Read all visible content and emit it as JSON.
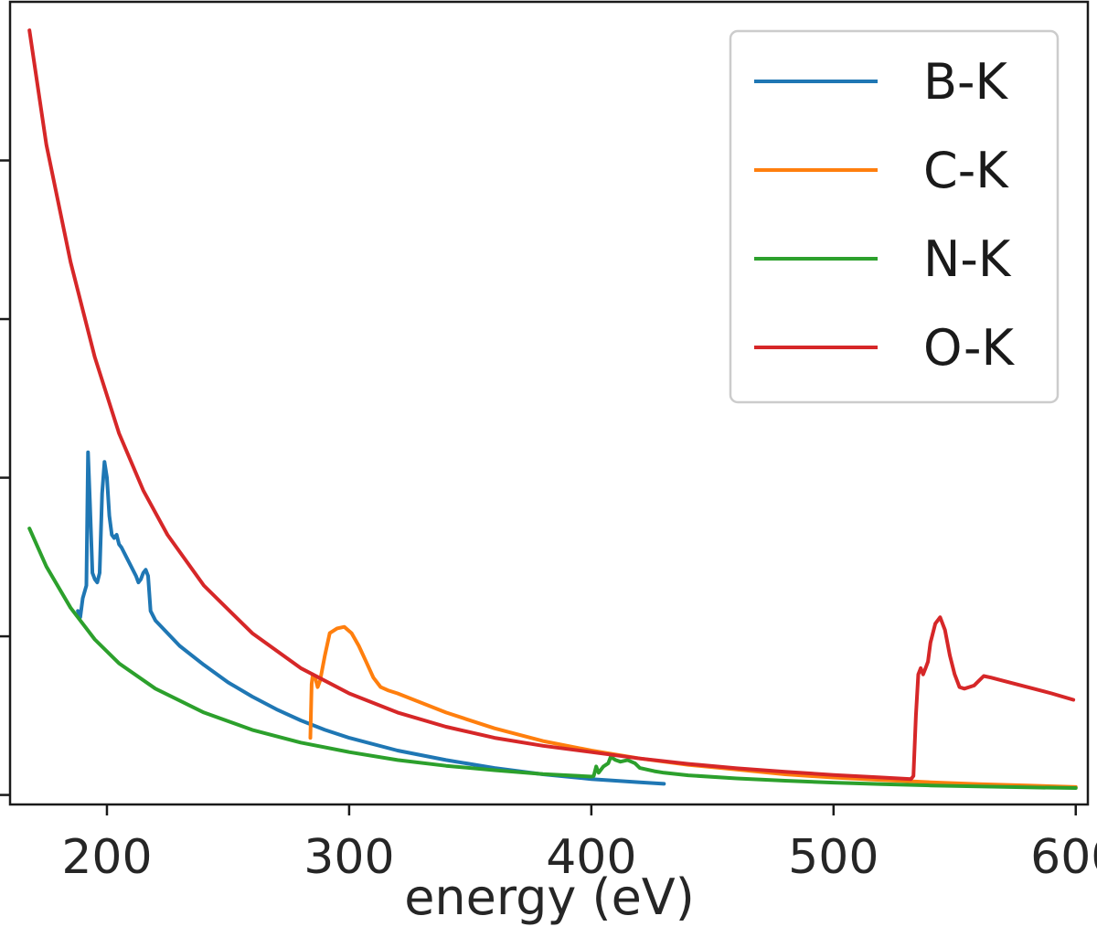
{
  "chart_data": {
    "type": "line",
    "xlabel": "energy (eV)",
    "ylabel": "",
    "xlim": [
      160,
      605
    ],
    "ylim": [
      -0.03,
      2.5
    ],
    "x_ticks": [
      200,
      300,
      400,
      500,
      600
    ],
    "x_tick_labels": [
      "200",
      "300",
      "400",
      "500",
      "600"
    ],
    "y_ticks": [
      0,
      0.5,
      1.0,
      1.5,
      2.0
    ],
    "y_tick_labels_visible": false,
    "grid": false,
    "legend": {
      "position": "top-right"
    },
    "series": [
      {
        "name": "B-K",
        "color": "#1f77b4",
        "points": [
          [
            188,
            0.58
          ],
          [
            189,
            0.56
          ],
          [
            190,
            0.62
          ],
          [
            191.5,
            0.66
          ],
          [
            192.2,
            1.08
          ],
          [
            193,
            0.92
          ],
          [
            194,
            0.7
          ],
          [
            195,
            0.68
          ],
          [
            196,
            0.67
          ],
          [
            197,
            0.7
          ],
          [
            198,
            0.95
          ],
          [
            199,
            1.05
          ],
          [
            200,
            1.0
          ],
          [
            201,
            0.88
          ],
          [
            202,
            0.82
          ],
          [
            203,
            0.81
          ],
          [
            204,
            0.82
          ],
          [
            205,
            0.79
          ],
          [
            206,
            0.78
          ],
          [
            208,
            0.75
          ],
          [
            210,
            0.72
          ],
          [
            212,
            0.69
          ],
          [
            213,
            0.67
          ],
          [
            214,
            0.68
          ],
          [
            215,
            0.7
          ],
          [
            216,
            0.71
          ],
          [
            217,
            0.69
          ],
          [
            218,
            0.58
          ],
          [
            220,
            0.55
          ],
          [
            230,
            0.47
          ],
          [
            240,
            0.41
          ],
          [
            250,
            0.355
          ],
          [
            260,
            0.31
          ],
          [
            270,
            0.27
          ],
          [
            280,
            0.235
          ],
          [
            290,
            0.205
          ],
          [
            300,
            0.18
          ],
          [
            320,
            0.14
          ],
          [
            340,
            0.11
          ],
          [
            360,
            0.085
          ],
          [
            380,
            0.065
          ],
          [
            400,
            0.05
          ],
          [
            420,
            0.04
          ],
          [
            430,
            0.035
          ]
        ]
      },
      {
        "name": "C-K",
        "color": "#ff7f0e",
        "points": [
          [
            284,
            0.18
          ],
          [
            284.5,
            0.35
          ],
          [
            285,
            0.38
          ],
          [
            286,
            0.37
          ],
          [
            287,
            0.34
          ],
          [
            288,
            0.36
          ],
          [
            290,
            0.44
          ],
          [
            292,
            0.51
          ],
          [
            295,
            0.525
          ],
          [
            298,
            0.53
          ],
          [
            301,
            0.51
          ],
          [
            304,
            0.47
          ],
          [
            307,
            0.42
          ],
          [
            310,
            0.37
          ],
          [
            313,
            0.34
          ],
          [
            316,
            0.33
          ],
          [
            320,
            0.32
          ],
          [
            340,
            0.26
          ],
          [
            360,
            0.21
          ],
          [
            380,
            0.17
          ],
          [
            400,
            0.14
          ],
          [
            420,
            0.115
          ],
          [
            440,
            0.095
          ],
          [
            460,
            0.08
          ],
          [
            480,
            0.065
          ],
          [
            500,
            0.055
          ],
          [
            520,
            0.047
          ],
          [
            540,
            0.04
          ],
          [
            560,
            0.034
          ],
          [
            580,
            0.03
          ],
          [
            600,
            0.025
          ]
        ]
      },
      {
        "name": "N-K",
        "color": "#2ca02c",
        "points": [
          [
            168,
            0.84
          ],
          [
            175,
            0.72
          ],
          [
            185,
            0.59
          ],
          [
            195,
            0.49
          ],
          [
            205,
            0.415
          ],
          [
            220,
            0.335
          ],
          [
            240,
            0.26
          ],
          [
            260,
            0.205
          ],
          [
            280,
            0.165
          ],
          [
            300,
            0.135
          ],
          [
            320,
            0.11
          ],
          [
            340,
            0.092
          ],
          [
            360,
            0.078
          ],
          [
            380,
            0.066
          ],
          [
            400,
            0.058
          ],
          [
            401,
            0.06
          ],
          [
            402,
            0.09
          ],
          [
            403,
            0.07
          ],
          [
            405,
            0.09
          ],
          [
            407,
            0.1
          ],
          [
            408,
            0.12
          ],
          [
            410,
            0.11
          ],
          [
            412,
            0.105
          ],
          [
            415,
            0.11
          ],
          [
            418,
            0.1
          ],
          [
            420,
            0.085
          ],
          [
            423,
            0.08
          ],
          [
            426,
            0.075
          ],
          [
            430,
            0.07
          ],
          [
            440,
            0.062
          ],
          [
            460,
            0.052
          ],
          [
            480,
            0.045
          ],
          [
            500,
            0.039
          ],
          [
            520,
            0.034
          ],
          [
            540,
            0.03
          ],
          [
            560,
            0.027
          ],
          [
            580,
            0.024
          ],
          [
            600,
            0.022
          ]
        ]
      },
      {
        "name": "O-K",
        "color": "#d62728",
        "points": [
          [
            168,
            2.41
          ],
          [
            175,
            2.05
          ],
          [
            185,
            1.68
          ],
          [
            195,
            1.38
          ],
          [
            205,
            1.14
          ],
          [
            215,
            0.96
          ],
          [
            225,
            0.82
          ],
          [
            240,
            0.66
          ],
          [
            260,
            0.51
          ],
          [
            280,
            0.4
          ],
          [
            300,
            0.32
          ],
          [
            320,
            0.26
          ],
          [
            340,
            0.215
          ],
          [
            360,
            0.18
          ],
          [
            380,
            0.155
          ],
          [
            400,
            0.135
          ],
          [
            420,
            0.115
          ],
          [
            440,
            0.098
          ],
          [
            460,
            0.084
          ],
          [
            480,
            0.073
          ],
          [
            500,
            0.063
          ],
          [
            520,
            0.055
          ],
          [
            532,
            0.05
          ],
          [
            533,
            0.06
          ],
          [
            534,
            0.25
          ],
          [
            535,
            0.38
          ],
          [
            536,
            0.4
          ],
          [
            537,
            0.38
          ],
          [
            538,
            0.4
          ],
          [
            539,
            0.42
          ],
          [
            540,
            0.48
          ],
          [
            542,
            0.54
          ],
          [
            544,
            0.56
          ],
          [
            546,
            0.52
          ],
          [
            548,
            0.44
          ],
          [
            550,
            0.38
          ],
          [
            552,
            0.34
          ],
          [
            554,
            0.335
          ],
          [
            556,
            0.34
          ],
          [
            558,
            0.345
          ],
          [
            560,
            0.36
          ],
          [
            562,
            0.375
          ],
          [
            565,
            0.37
          ],
          [
            570,
            0.36
          ],
          [
            580,
            0.34
          ],
          [
            590,
            0.32
          ],
          [
            599,
            0.3
          ]
        ]
      }
    ]
  }
}
